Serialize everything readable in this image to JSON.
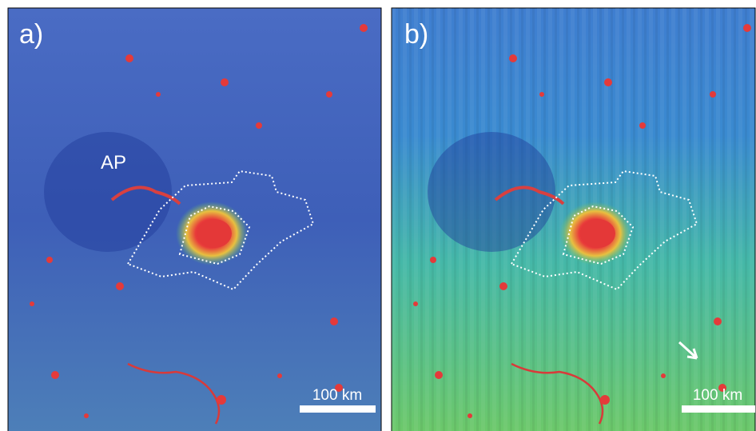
{
  "panels": [
    {
      "label": "a)",
      "annotation": "AP",
      "scale_bar": "100 km"
    },
    {
      "label": "b)",
      "scale_bar": "100 km"
    }
  ]
}
